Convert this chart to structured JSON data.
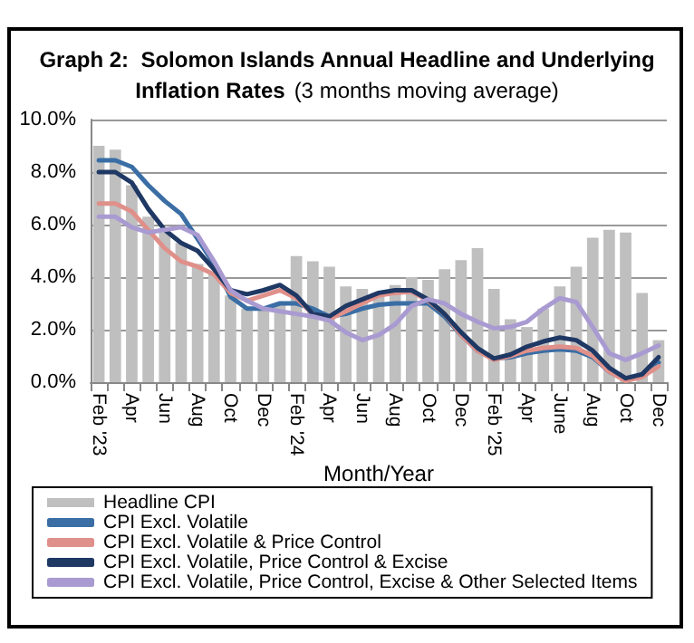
{
  "chart_data": {
    "type": "line",
    "title": "Graph 2:  Solomon Islands Annual Headline and Underlying Inflation Rates",
    "subtitle": "(3 months moving average)",
    "xlabel": "Month/Year",
    "categories": [
      "Feb '23",
      null,
      "Apr",
      null,
      "Jun",
      null,
      "Aug",
      null,
      "Oct",
      null,
      "Dec",
      null,
      "Feb '24",
      null,
      "Apr",
      null,
      "Jun",
      null,
      "Aug",
      null,
      "Oct",
      null,
      "Dec",
      null,
      "Feb '25",
      null,
      "Apr",
      null,
      "June",
      null,
      "Aug",
      null,
      "Oct",
      null,
      "Dec"
    ],
    "series": [
      {
        "name": "Headline CPI",
        "type": "bar",
        "color": "#bfbfbf",
        "values": [
          9.0,
          8.85,
          7.5,
          6.3,
          5.7,
          5.3,
          4.5,
          4.1,
          3.3,
          2.8,
          2.8,
          3.0,
          4.8,
          4.6,
          4.4,
          3.65,
          3.55,
          3.4,
          3.7,
          4.0,
          3.9,
          4.3,
          4.65,
          5.1,
          3.55,
          2.4,
          2.1,
          2.8,
          3.65,
          4.4,
          5.5,
          5.8,
          5.7,
          3.4,
          1.6
        ]
      },
      {
        "name": "CPI Excl. Volatile",
        "color": "#3a6ea5",
        "values": [
          8.45,
          8.45,
          8.2,
          7.5,
          6.9,
          6.4,
          5.45,
          4.5,
          3.25,
          2.8,
          2.8,
          3.0,
          3.0,
          2.8,
          2.5,
          2.6,
          2.8,
          2.95,
          3.0,
          3.0,
          3.0,
          2.5,
          1.8,
          1.2,
          0.9,
          0.95,
          1.1,
          1.2,
          1.25,
          1.2,
          0.95,
          0.4,
          0.1,
          0.25,
          0.75
        ]
      },
      {
        "name": "CPI Excl. Volatile & Price Control",
        "color": "#e0908a",
        "values": [
          6.8,
          6.8,
          6.5,
          5.8,
          5.1,
          4.6,
          4.4,
          4.1,
          3.4,
          3.1,
          3.3,
          3.5,
          3.2,
          2.6,
          2.4,
          2.7,
          3.0,
          3.3,
          3.4,
          3.45,
          3.1,
          2.6,
          1.8,
          1.2,
          0.85,
          1.0,
          1.2,
          1.3,
          1.35,
          1.3,
          1.0,
          0.4,
          0.05,
          0.2,
          0.6
        ]
      },
      {
        "name": "CPI Excl. Volatile, Price Control & Excise",
        "color": "#1f3864",
        "values": [
          8.0,
          8.0,
          7.6,
          6.6,
          5.8,
          5.3,
          5.0,
          4.3,
          3.5,
          3.35,
          3.5,
          3.7,
          3.3,
          2.6,
          2.5,
          2.9,
          3.15,
          3.4,
          3.5,
          3.5,
          3.15,
          2.6,
          1.9,
          1.3,
          0.9,
          1.05,
          1.35,
          1.55,
          1.7,
          1.6,
          1.2,
          0.55,
          0.15,
          0.3,
          0.95
        ]
      },
      {
        "name": "CPI Excl. Volatile, Price Control, Excise & Other Selected Items",
        "color": "#a99bd1",
        "values": [
          6.3,
          6.3,
          5.9,
          5.7,
          5.8,
          5.9,
          5.6,
          4.6,
          3.5,
          3.1,
          2.8,
          2.7,
          2.6,
          2.5,
          2.35,
          1.9,
          1.6,
          1.8,
          2.2,
          2.9,
          3.15,
          3.0,
          2.6,
          2.3,
          2.05,
          2.1,
          2.3,
          2.8,
          3.2,
          3.05,
          2.1,
          1.1,
          0.85,
          1.1,
          1.4
        ]
      }
    ],
    "ylim": [
      0,
      10
    ],
    "yticks": [
      {
        "value": 0,
        "label": "0.0%"
      },
      {
        "value": 2,
        "label": "2.0%"
      },
      {
        "value": 4,
        "label": "4.0%"
      },
      {
        "value": 6,
        "label": "6.0%"
      },
      {
        "value": 8,
        "label": "8.0%"
      },
      {
        "value": 10,
        "label": "10.0%"
      }
    ],
    "grid": "y",
    "legend": "bottom",
    "marker": "none",
    "line_style": "solid"
  }
}
